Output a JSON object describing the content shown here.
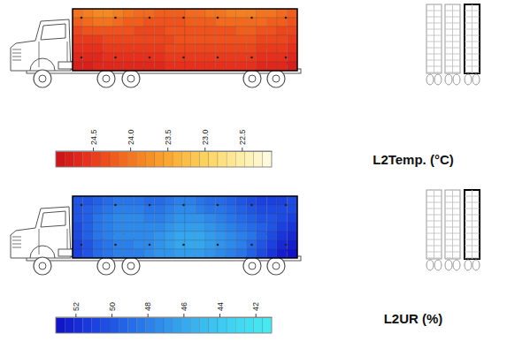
{
  "chart_data": [
    {
      "type": "heatmap",
      "title": "L2Temp. (°C)",
      "colors": [
        "#c8101a",
        "#e8301c",
        "#f2611c",
        "#f78e22",
        "#fbb53a",
        "#fdd766",
        "#feeea6",
        "#fffbe6"
      ],
      "colorbar": {
        "range": [
          25.0,
          22.1
        ],
        "ticks": [
          24.5,
          {
            "value": 24,
            "label": "24.0"
          },
          23.5,
          {
            "value": 23,
            "label": "23.0"
          },
          22.5
        ]
      },
      "cells": [
        [
          24.0,
          23.9,
          23.8,
          23.8,
          23.9,
          24.0,
          24.1,
          24.1,
          24.2,
          24.2,
          24.2,
          24.1,
          24.1,
          24.0,
          24.0,
          23.9,
          23.9,
          23.9,
          24.0,
          24.0,
          24.1,
          24.2
        ],
        [
          24.2,
          24.1,
          24.0,
          24.0,
          24.1,
          24.2,
          24.2,
          24.3,
          24.3,
          24.3,
          24.3,
          24.2,
          24.2,
          24.2,
          24.1,
          24.1,
          24.1,
          24.1,
          24.1,
          24.2,
          24.2,
          24.3
        ],
        [
          24.4,
          24.3,
          24.3,
          24.3,
          24.3,
          24.3,
          24.4,
          24.4,
          24.4,
          24.3,
          24.3,
          24.3,
          24.3,
          24.3,
          24.3,
          24.3,
          24.2,
          24.2,
          24.3,
          24.3,
          24.4,
          24.4
        ],
        [
          24.5,
          24.5,
          24.5,
          24.4,
          24.4,
          24.4,
          24.4,
          24.4,
          24.4,
          24.4,
          24.3,
          24.3,
          24.3,
          24.3,
          24.3,
          24.3,
          24.3,
          24.3,
          24.4,
          24.4,
          24.4,
          24.5
        ],
        [
          24.6,
          24.6,
          24.6,
          24.5,
          24.5,
          24.5,
          24.5,
          24.5,
          24.5,
          24.4,
          24.4,
          24.4,
          24.4,
          24.4,
          24.4,
          24.4,
          24.4,
          24.4,
          24.5,
          24.5,
          24.5,
          24.6
        ],
        [
          24.7,
          24.7,
          24.7,
          24.6,
          24.6,
          24.6,
          24.6,
          24.6,
          24.6,
          24.5,
          24.5,
          24.5,
          24.5,
          24.5,
          24.5,
          24.5,
          24.5,
          24.5,
          24.6,
          24.6,
          24.6,
          24.7
        ],
        [
          24.8,
          24.8,
          24.7,
          24.7,
          24.7,
          24.7,
          24.7,
          24.7,
          24.7,
          24.6,
          24.6,
          24.6,
          24.6,
          24.6,
          24.6,
          24.6,
          24.6,
          24.6,
          24.7,
          24.7,
          24.7,
          24.8
        ]
      ]
    },
    {
      "type": "heatmap",
      "title": "L2UR (%)",
      "colors": [
        "#1010c8",
        "#1a3ee0",
        "#2468e8",
        "#2f92ec",
        "#39b8f0",
        "#40d6f2",
        "#48ecf0"
      ],
      "colorbar": {
        "range": [
          53.1,
          41.1
        ],
        "ticks": [
          52,
          50,
          48,
          46,
          44,
          42
        ]
      },
      "cells": [
        [
          50,
          50,
          49.5,
          49,
          48.5,
          48.5,
          48.5,
          49,
          49,
          48.5,
          48,
          48,
          48.5,
          49,
          49,
          49.5,
          50,
          50.5,
          51,
          51,
          51,
          50.5
        ],
        [
          50,
          49.5,
          49,
          48.5,
          48,
          48,
          48,
          48.5,
          48.5,
          48,
          47.5,
          47.5,
          48,
          48.5,
          48.5,
          49,
          49.5,
          50,
          50.5,
          50.5,
          50.5,
          50.5
        ],
        [
          50,
          49.5,
          48.5,
          48,
          47.5,
          47.5,
          47.5,
          48,
          48,
          47.5,
          47,
          47,
          47,
          47.5,
          48,
          48.5,
          49,
          49.5,
          50,
          50,
          50.5,
          51
        ],
        [
          50.5,
          49.5,
          48.5,
          48,
          47.5,
          47.5,
          47.5,
          47.5,
          47.5,
          47,
          46.5,
          46.5,
          46.5,
          47,
          47.5,
          48,
          48.5,
          49,
          49.5,
          50,
          51,
          51.5
        ],
        [
          50.5,
          49.5,
          48.5,
          48,
          47.5,
          47.5,
          47.5,
          47.5,
          47,
          46.5,
          46,
          46,
          46,
          46.5,
          47,
          47.5,
          48,
          48.5,
          49.5,
          50.5,
          51.5,
          52
        ],
        [
          51,
          50,
          49,
          48.5,
          48,
          48,
          47.5,
          47.5,
          47,
          46.5,
          46,
          46,
          46,
          46.5,
          47,
          47.5,
          48,
          49,
          50,
          51,
          52,
          52.5
        ],
        [
          51,
          50,
          49,
          48.5,
          48,
          48,
          48,
          47.5,
          47,
          47,
          46.5,
          46.5,
          46.5,
          47,
          47.5,
          48,
          48.5,
          49.5,
          50.5,
          51.5,
          52.5,
          53
        ]
      ]
    }
  ]
}
